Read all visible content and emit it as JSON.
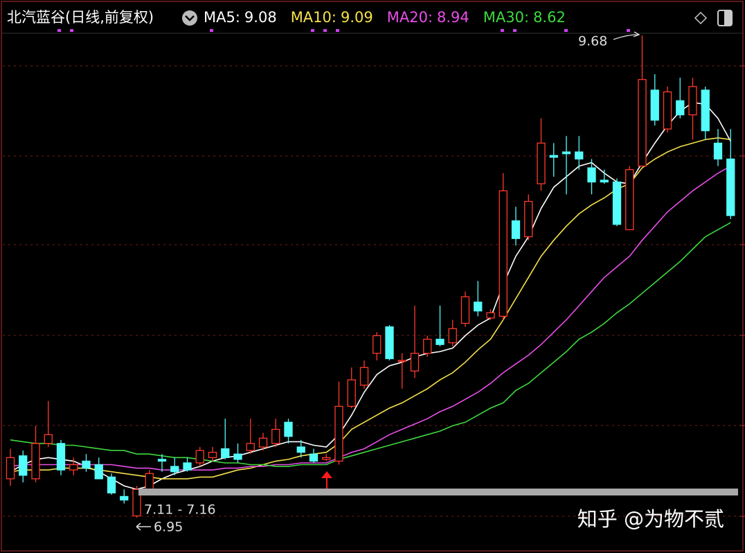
{
  "chart_data": {
    "type": "candlestick",
    "title": "北汽蓝谷(日线,前复权)",
    "categories": [
      null,
      null,
      null,
      null,
      null,
      null,
      null,
      null,
      null,
      null,
      null,
      null,
      null,
      null,
      null,
      null,
      null,
      null,
      null,
      null,
      null,
      null,
      null,
      null,
      null,
      null,
      null,
      null,
      null,
      null,
      null,
      null,
      null,
      null,
      null,
      null,
      null,
      null,
      null,
      null,
      null,
      null,
      null,
      null,
      null,
      null,
      null,
      null,
      null,
      null,
      null,
      null,
      null,
      null,
      null,
      null,
      null,
      null
    ],
    "ylim": [
      6.75,
      9.88
    ],
    "up_color": "#ff3a2a",
    "down_color": "#54fcfc",
    "open": [
      7.17,
      7.3,
      7.17,
      7.37,
      7.37,
      7.22,
      7.27,
      7.25,
      7.18,
      7.07,
      6.96,
      7.11,
      7.28,
      7.24,
      7.26,
      7.26,
      7.29,
      7.34,
      7.31,
      7.33,
      7.35,
      7.37,
      7.49,
      7.35,
      7.31,
      7.28,
      7.27,
      7.58,
      7.7,
      7.88,
      8.03,
      7.84,
      7.78,
      7.88,
      7.96,
      7.94,
      8.05,
      8.17,
      8.08,
      8.09,
      8.63,
      8.54,
      8.84,
      9.0,
      9.02,
      9.02,
      8.93,
      8.86,
      8.85,
      8.58,
      8.94,
      9.37,
      9.15,
      9.31,
      9.23,
      9.37,
      9.07,
      8.98
    ],
    "high": [
      7.34,
      7.33,
      7.47,
      7.61,
      7.39,
      7.29,
      7.31,
      7.29,
      7.2,
      7.11,
      7.13,
      7.22,
      7.31,
      7.29,
      7.29,
      7.35,
      7.35,
      7.51,
      7.37,
      7.51,
      7.43,
      7.51,
      7.51,
      7.39,
      7.34,
      7.31,
      7.72,
      7.8,
      7.84,
      8.0,
      8.04,
      7.88,
      8.15,
      7.98,
      8.15,
      8.07,
      8.23,
      8.29,
      8.13,
      8.9,
      8.71,
      8.78,
      9.21,
      9.07,
      9.11,
      9.11,
      8.98,
      8.92,
      8.87,
      8.94,
      9.68,
      9.46,
      9.39,
      9.44,
      9.44,
      9.39,
      9.15,
      9.15
    ],
    "low": [
      7.13,
      7.15,
      7.15,
      7.35,
      7.19,
      7.19,
      7.21,
      7.17,
      7.08,
      7.03,
      6.95,
      7.1,
      7.21,
      7.19,
      7.21,
      7.24,
      7.27,
      7.28,
      7.26,
      7.31,
      7.33,
      7.35,
      7.37,
      7.29,
      7.26,
      7.27,
      7.25,
      7.57,
      7.68,
      7.84,
      7.84,
      7.68,
      7.74,
      7.86,
      7.92,
      7.92,
      8.03,
      8.09,
      8.07,
      8.07,
      8.49,
      8.52,
      8.8,
      8.88,
      8.78,
      8.92,
      8.78,
      8.84,
      8.6,
      8.58,
      8.94,
      9.17,
      9.13,
      9.21,
      9.09,
      9.09,
      8.94,
      8.64
    ],
    "close": [
      7.29,
      7.19,
      7.37,
      7.42,
      7.22,
      7.25,
      7.23,
      7.17,
      7.09,
      7.05,
      7.11,
      7.2,
      7.27,
      7.21,
      7.22,
      7.33,
      7.32,
      7.29,
      7.28,
      7.37,
      7.4,
      7.45,
      7.41,
      7.32,
      7.27,
      7.29,
      7.58,
      7.73,
      7.8,
      7.98,
      7.85,
      7.84,
      7.88,
      7.96,
      7.93,
      8.02,
      8.2,
      8.12,
      8.11,
      8.8,
      8.53,
      8.74,
      9.07,
      8.99,
      9.01,
      8.98,
      8.85,
      8.85,
      8.61,
      8.92,
      9.43,
      9.2,
      9.36,
      9.23,
      9.39,
      9.14,
      8.98,
      8.66
    ],
    "series": [
      {
        "name": "MA5:",
        "color": "#ffffff",
        "value": 9.08,
        "values": [
          7.21,
          7.25,
          7.28,
          7.29,
          7.28,
          7.27,
          7.24,
          7.21,
          7.17,
          7.13,
          7.11,
          7.13,
          7.17,
          7.2,
          7.22,
          7.24,
          7.27,
          7.29,
          7.3,
          7.32,
          7.34,
          7.36,
          7.38,
          7.38,
          7.36,
          7.35,
          7.42,
          7.53,
          7.66,
          7.76,
          7.81,
          7.83,
          7.86,
          7.88,
          7.89,
          7.91,
          7.98,
          8.04,
          8.08,
          8.27,
          8.43,
          8.54,
          8.7,
          8.82,
          8.88,
          8.94,
          8.96,
          8.9,
          8.85,
          8.84,
          8.96,
          9.07,
          9.17,
          9.25,
          9.3,
          9.29,
          9.21,
          9.08
        ]
      },
      {
        "name": "MA10:",
        "color": "#f5e14a",
        "value": 9.09,
        "values": [
          7.21,
          7.22,
          7.22,
          7.22,
          7.23,
          7.23,
          7.23,
          7.22,
          7.21,
          7.2,
          7.19,
          7.18,
          7.17,
          7.17,
          7.17,
          7.18,
          7.18,
          7.2,
          7.22,
          7.23,
          7.25,
          7.27,
          7.28,
          7.3,
          7.31,
          7.32,
          7.37,
          7.45,
          7.49,
          7.53,
          7.57,
          7.6,
          7.64,
          7.68,
          7.73,
          7.77,
          7.83,
          7.9,
          7.96,
          8.07,
          8.19,
          8.31,
          8.43,
          8.52,
          8.6,
          8.67,
          8.72,
          8.76,
          8.81,
          8.84,
          8.93,
          8.98,
          9.02,
          9.05,
          9.07,
          9.09,
          9.1,
          9.09
        ]
      },
      {
        "name": "MA20:",
        "color": "#e84ee8",
        "value": 8.94,
        "values": [
          7.24,
          7.25,
          7.25,
          7.25,
          7.25,
          7.25,
          7.25,
          7.25,
          7.25,
          7.24,
          7.23,
          7.23,
          7.22,
          7.22,
          7.22,
          7.22,
          7.22,
          7.23,
          7.23,
          7.24,
          7.24,
          7.25,
          7.25,
          7.26,
          7.26,
          7.26,
          7.29,
          7.32,
          7.34,
          7.38,
          7.42,
          7.45,
          7.48,
          7.51,
          7.55,
          7.58,
          7.62,
          7.66,
          7.71,
          7.77,
          7.82,
          7.87,
          7.93,
          8.0,
          8.07,
          8.15,
          8.23,
          8.31,
          8.37,
          8.43,
          8.52,
          8.6,
          8.68,
          8.74,
          8.8,
          8.85,
          8.9,
          8.94
        ]
      },
      {
        "name": "MA30:",
        "color": "#3fd93f",
        "value": 8.62,
        "values": [
          7.39,
          7.38,
          7.37,
          7.37,
          7.36,
          7.36,
          7.35,
          7.34,
          7.33,
          7.33,
          7.31,
          7.31,
          7.3,
          7.29,
          7.29,
          7.28,
          7.27,
          7.26,
          7.26,
          7.25,
          7.25,
          7.24,
          7.24,
          7.25,
          7.25,
          7.25,
          7.28,
          7.3,
          7.32,
          7.34,
          7.36,
          7.38,
          7.4,
          7.42,
          7.44,
          7.47,
          7.49,
          7.53,
          7.57,
          7.6,
          7.67,
          7.71,
          7.77,
          7.83,
          7.89,
          7.96,
          8.0,
          8.05,
          8.11,
          8.16,
          8.22,
          8.28,
          8.34,
          8.4,
          8.47,
          8.54,
          8.58,
          8.62
        ]
      }
    ],
    "annotations": [
      {
        "text": "9.68",
        "value": 9.68
      },
      {
        "text": "6.95",
        "value": 6.95
      },
      {
        "text": "7.11 - 7.16"
      }
    ],
    "watermark": "知乎 @为物不贰"
  }
}
